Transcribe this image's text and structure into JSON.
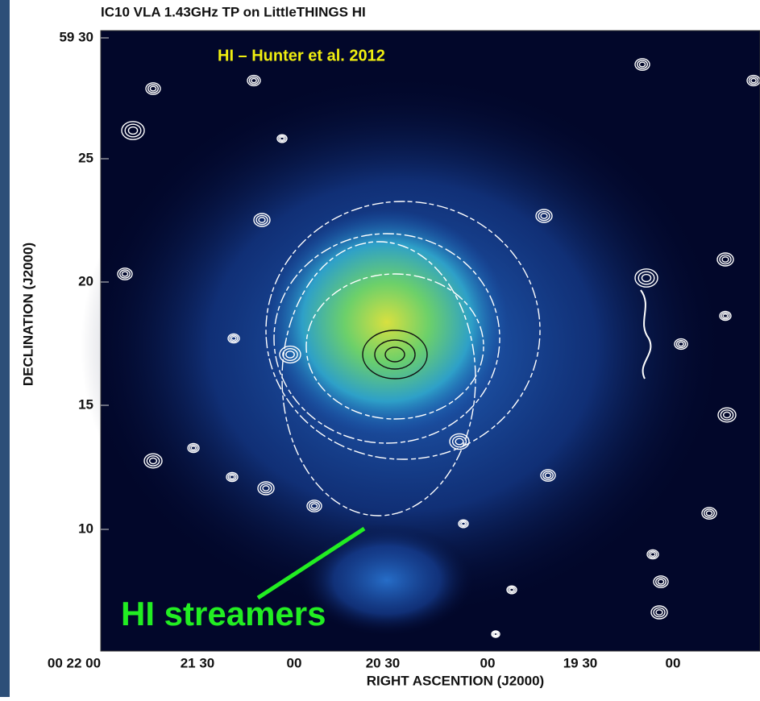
{
  "header": {
    "title": "IC10 VLA 1.43GHz TP on LittleTHINGS HI"
  },
  "annotations": {
    "credit": "HI – Hunter et al. 2012",
    "feature": "HI streamers"
  },
  "axes": {
    "y_label": "DECLINATION (J2000)",
    "x_label": "RIGHT ASCENTION (J2000)",
    "y_ticks": [
      "59 30",
      "25",
      "20",
      "15",
      "10"
    ],
    "x_ticks": [
      "00 22 00",
      "21 30",
      "00",
      "20 30",
      "00",
      "19 30",
      "00"
    ]
  }
}
